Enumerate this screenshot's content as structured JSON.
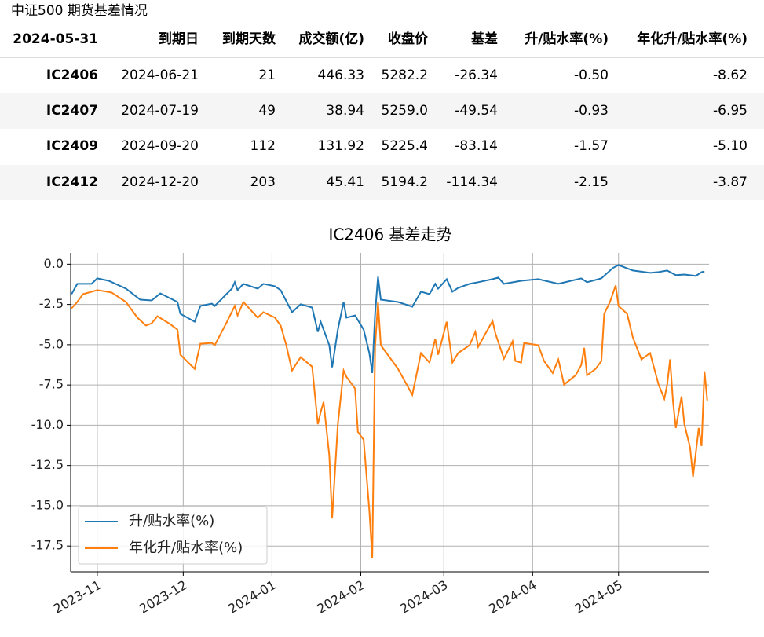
{
  "caption": "中证500  期货基差情况",
  "table": {
    "header": [
      "2024-05-31",
      "到期日",
      "到期天数",
      "成交额(亿)",
      "收盘价",
      "基差",
      "升/贴水率(%)",
      "年化升/贴水率(%)"
    ],
    "rows": [
      [
        "IC2406",
        "2024-06-21",
        "21",
        "446.33",
        "5282.2",
        "-26.34",
        "-0.50",
        "-8.62"
      ],
      [
        "IC2407",
        "2024-07-19",
        "49",
        "38.94",
        "5259.0",
        "-49.54",
        "-0.93",
        "-6.95"
      ],
      [
        "IC2409",
        "2024-09-20",
        "112",
        "131.92",
        "5225.4",
        "-83.14",
        "-1.57",
        "-5.10"
      ],
      [
        "IC2412",
        "2024-12-20",
        "203",
        "45.41",
        "5194.2",
        "-114.34",
        "-2.15",
        "-3.87"
      ]
    ]
  },
  "chart_data": {
    "type": "line",
    "title": "IC2406 基差走势",
    "xlim": [
      -9.3,
      213.6
    ],
    "xticks": [
      {
        "value": 0,
        "label": "2023-11"
      },
      {
        "value": 30,
        "label": "2023-12"
      },
      {
        "value": 61,
        "label": "2024-01"
      },
      {
        "value": 92,
        "label": "2024-02"
      },
      {
        "value": 121,
        "label": "2024-03"
      },
      {
        "value": 152,
        "label": "2024-04"
      },
      {
        "value": 182,
        "label": "2024-05"
      }
    ],
    "ylim": [
      -19.1,
      0.7
    ],
    "yticks": [
      {
        "value": 0,
        "label": "0.0"
      },
      {
        "value": -2.5,
        "label": "-2.5"
      },
      {
        "value": -5,
        "label": "-5.0"
      },
      {
        "value": -7.5,
        "label": "-7.5"
      },
      {
        "value": -10,
        "label": "-10.0"
      },
      {
        "value": -12.5,
        "label": "-12.5"
      },
      {
        "value": -15,
        "label": "-15.0"
      },
      {
        "value": -17.5,
        "label": "-17.5"
      }
    ],
    "grid": true,
    "legend": "lower left",
    "series": [
      {
        "name": "升/贴水率(%)",
        "color": "#1f77b4",
        "x": [
          -9,
          -7,
          -2,
          0,
          4,
          10,
          15,
          19,
          22,
          28,
          29,
          34,
          36,
          40,
          41,
          47,
          48,
          49,
          51,
          56,
          58,
          62,
          64,
          68,
          71,
          75,
          77,
          78,
          81,
          82,
          84,
          86,
          87,
          90,
          93,
          95,
          96,
          97,
          98,
          99,
          105,
          110,
          113,
          116,
          118,
          119,
          122,
          124,
          126,
          130,
          133,
          138,
          140,
          142,
          148,
          154,
          161,
          169,
          171,
          176,
          180,
          182,
          187,
          193,
          196,
          199,
          202,
          205,
          209,
          211,
          212
        ],
        "values": [
          -1.86,
          -1.22,
          -1.22,
          -0.88,
          -1.03,
          -1.52,
          -2.2,
          -2.25,
          -1.81,
          -2.35,
          -3.08,
          -3.57,
          -2.59,
          -2.45,
          -2.59,
          -1.52,
          -1.12,
          -1.61,
          -1.22,
          -1.52,
          -1.22,
          -1.37,
          -1.61,
          -2.98,
          -2.49,
          -2.69,
          -4.2,
          -3.57,
          -5.03,
          -6.4,
          -4.06,
          -2.35,
          -3.32,
          -3.18,
          -4.06,
          -5.52,
          -6.75,
          -3.08,
          -0.78,
          -2.2,
          -2.35,
          -2.64,
          -1.71,
          -1.86,
          -1.22,
          -1.52,
          -0.93,
          -1.71,
          -1.47,
          -1.22,
          -1.12,
          -0.93,
          -0.83,
          -1.22,
          -1.03,
          -0.93,
          -1.22,
          -0.88,
          -1.12,
          -0.88,
          -0.24,
          -0.05,
          -0.39,
          -0.54,
          -0.49,
          -0.39,
          -0.68,
          -0.64,
          -0.73,
          -0.49,
          -0.45
        ]
      },
      {
        "name": "年化升/贴水率(%)",
        "color": "#ff7f0e",
        "x": [
          -9,
          -7,
          -5,
          0,
          5,
          10,
          14,
          17,
          19,
          21,
          25,
          28,
          29,
          34,
          36,
          40,
          41,
          45,
          48,
          49,
          51,
          56,
          58,
          62,
          64,
          66,
          68,
          71,
          75,
          77,
          78,
          79,
          81,
          82,
          84,
          86,
          87,
          90,
          91,
          93,
          95,
          96,
          97,
          98,
          99,
          105,
          110,
          113,
          116,
          118,
          119,
          122,
          124,
          126,
          130,
          132,
          133,
          138,
          139,
          142,
          145,
          146,
          148,
          149,
          154,
          156,
          159,
          161,
          163,
          167,
          169,
          170,
          171,
          174,
          176,
          177,
          179,
          181,
          182,
          185,
          187,
          190,
          193,
          196,
          198,
          199,
          200,
          201,
          202,
          204,
          205,
          207,
          208,
          210,
          211,
          212,
          213
        ],
        "values": [
          -2.74,
          -2.35,
          -1.86,
          -1.61,
          -1.76,
          -2.35,
          -3.32,
          -3.81,
          -3.67,
          -3.23,
          -3.67,
          -4.06,
          -5.62,
          -6.5,
          -4.94,
          -4.89,
          -5.03,
          -3.67,
          -2.59,
          -3.18,
          -2.35,
          -3.32,
          -2.98,
          -3.32,
          -3.81,
          -5.03,
          -6.6,
          -5.77,
          -6.36,
          -9.93,
          -9.19,
          -8.55,
          -11.88,
          -15.79,
          -9.93,
          -6.6,
          -6.99,
          -7.72,
          -10.41,
          -10.9,
          -15.3,
          -18.23,
          -5.13,
          -2.35,
          -5.03,
          -6.5,
          -8.11,
          -5.52,
          -6.11,
          -4.64,
          -5.62,
          -3.57,
          -6.11,
          -5.52,
          -5.03,
          -4.2,
          -5.13,
          -3.52,
          -4.3,
          -5.87,
          -4.79,
          -6.01,
          -6.11,
          -4.89,
          -5.03,
          -6.01,
          -6.75,
          -5.92,
          -7.48,
          -6.9,
          -6.26,
          -5.19,
          -6.9,
          -6.5,
          -6.01,
          -3.08,
          -2.35,
          -1.32,
          -2.59,
          -3.08,
          -4.55,
          -5.91,
          -5.52,
          -7.48,
          -8.36,
          -7.48,
          -5.91,
          -8.46,
          -10.17,
          -8.21,
          -9.93,
          -11.39,
          -13.2,
          -10.17,
          -11.29,
          -6.65,
          -8.46
        ]
      }
    ]
  }
}
